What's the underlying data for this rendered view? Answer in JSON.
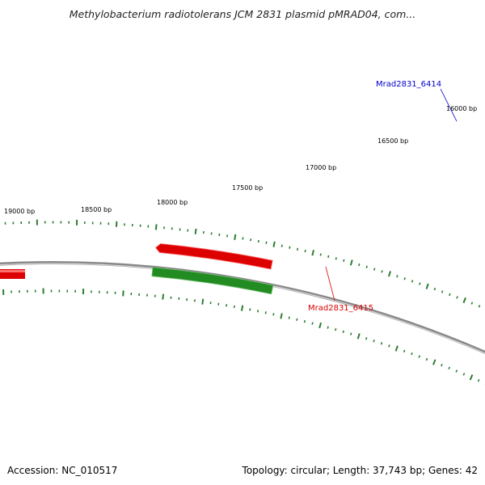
{
  "title": "Methylobacterium radiotolerans JCM 2831 plasmid pMRAD04, com...",
  "footer": {
    "accession": "Accession: NC_010517",
    "summary": "Topology: circular; Length: 37,743 bp; Genes: 42"
  },
  "ruler": {
    "tick_labels": [
      "16000 bp",
      "16500 bp",
      "17000 bp",
      "17500 bp",
      "18000 bp",
      "18500 bp",
      "19000 bp"
    ]
  },
  "genes": [
    {
      "label": "Mrad2831_6414",
      "color": "#0000cc",
      "labeled": true
    },
    {
      "label": "Mrad2831_6415",
      "color": "#dd0000",
      "labeled": true
    },
    {
      "label": "",
      "color": "#dd0000",
      "labeled": false
    },
    {
      "label": "",
      "color": "#228b22",
      "labeled": false
    }
  ],
  "colors": {
    "backbone": "#888888",
    "tick": "#2e7d32",
    "cds": "#228b22",
    "gene_forward": "#dd0000",
    "gene_blue": "#0000ff"
  }
}
